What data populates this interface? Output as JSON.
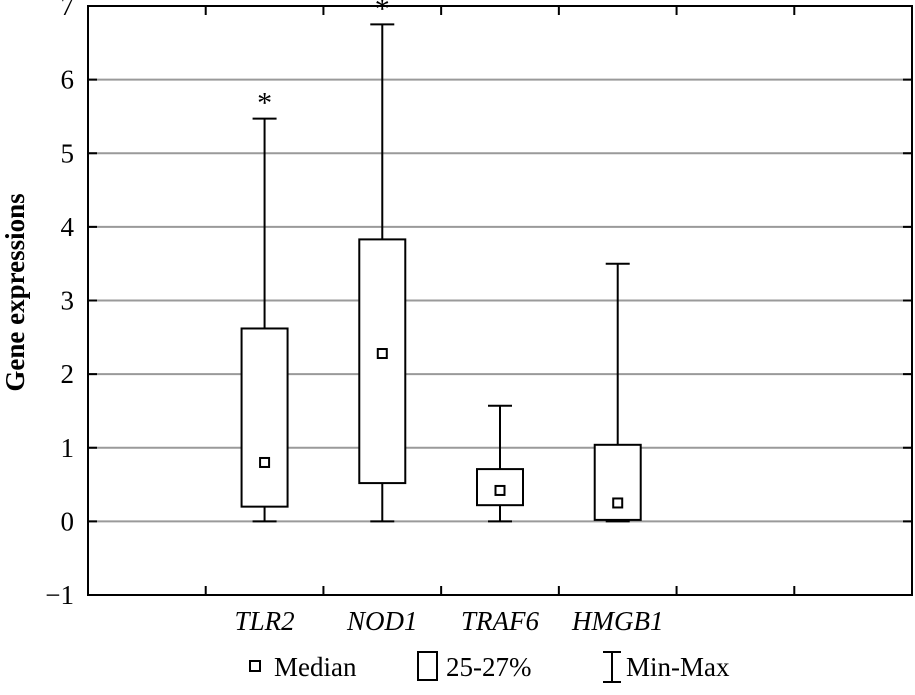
{
  "chart_data": {
    "type": "box",
    "title": "",
    "xlabel": "",
    "ylabel": "Gene expressions",
    "ylim": [
      -1,
      7
    ],
    "yticks": [
      -1,
      0,
      1,
      2,
      3,
      4,
      5,
      6,
      7
    ],
    "ytick_labels": [
      "−1",
      "0",
      "1",
      "2",
      "3",
      "4",
      "5",
      "6",
      "7"
    ],
    "grid": "horizontal",
    "x_slot_count": 7,
    "categories": [
      "TLR2",
      "NOD1",
      "TRAF6",
      "HMGB1"
    ],
    "category_slots": [
      2,
      3,
      4,
      5
    ],
    "boxes": [
      {
        "category": "TLR2",
        "min": 0.0,
        "q1": 0.2,
        "median": 0.8,
        "q3": 2.62,
        "max": 5.47,
        "marker": "*"
      },
      {
        "category": "NOD1",
        "min": 0.0,
        "q1": 0.52,
        "median": 2.28,
        "q3": 3.83,
        "max": 6.75,
        "marker": "*"
      },
      {
        "category": "TRAF6",
        "min": 0.0,
        "q1": 0.22,
        "median": 0.42,
        "q3": 0.71,
        "max": 1.57,
        "marker": ""
      },
      {
        "category": "HMGB1",
        "min": 0.0,
        "q1": 0.02,
        "median": 0.25,
        "q3": 1.04,
        "max": 3.5,
        "marker": ""
      }
    ],
    "legend": {
      "placement": "bottom",
      "items": [
        {
          "kind": "median",
          "label": "Median"
        },
        {
          "kind": "box",
          "label": "25-27%"
        },
        {
          "kind": "whisker",
          "label": "Min-Max"
        }
      ]
    },
    "colors": {
      "grid": "#9a9a9a",
      "axis": "#000000",
      "box_fill": "#ffffff"
    }
  }
}
